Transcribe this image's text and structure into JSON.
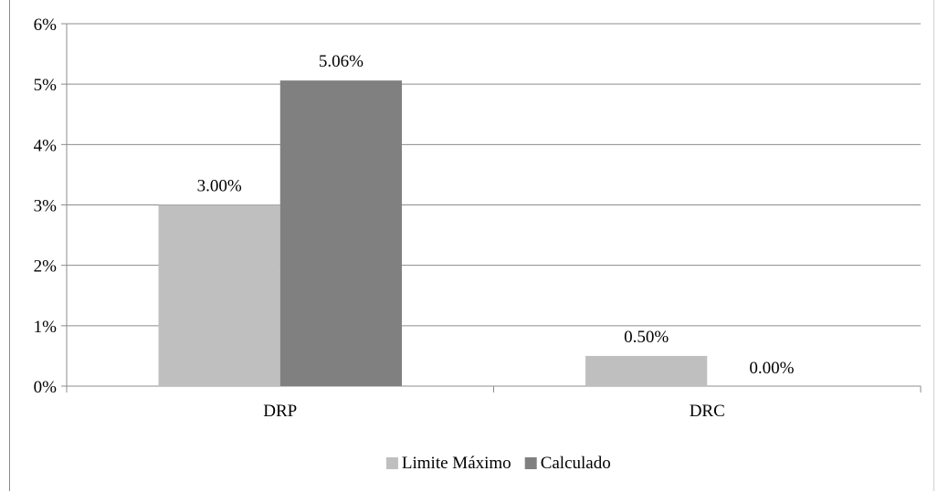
{
  "chart_data": {
    "type": "bar",
    "categories": [
      "DRP",
      "DRC"
    ],
    "series": [
      {
        "name": "Limite Máximo",
        "values": [
          3.0,
          0.5
        ],
        "color": "#bfbfbf"
      },
      {
        "name": "Calculado",
        "values": [
          5.06,
          0.0
        ],
        "color": "#808080"
      }
    ],
    "data_labels": [
      [
        "3.00%",
        "0.50%"
      ],
      [
        "5.06%",
        "0.00%"
      ]
    ],
    "y_ticks": [
      "0%",
      "1%",
      "2%",
      "3%",
      "4%",
      "5%",
      "6%"
    ],
    "ylim": [
      0,
      6
    ],
    "y_unit": "%",
    "grid": true,
    "legend_position": "bottom",
    "title": "",
    "xlabel": "",
    "ylabel": ""
  }
}
